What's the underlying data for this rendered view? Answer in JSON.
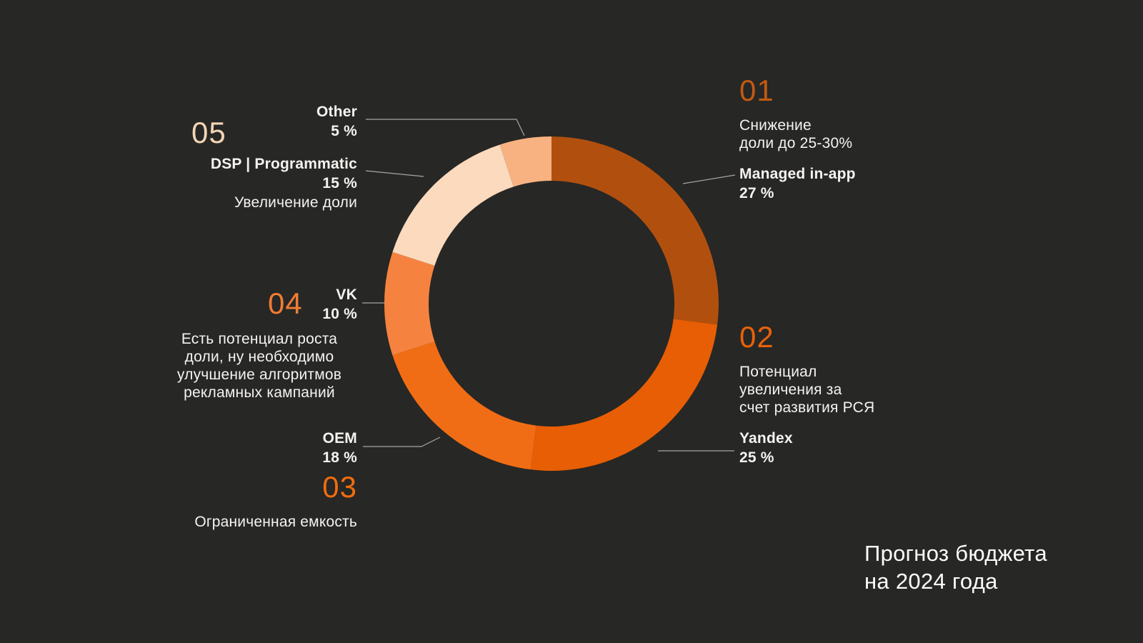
{
  "canvas": {
    "background": "#272725",
    "text_color": "#f5f3f0",
    "leader_line_color": "#a8a6a2"
  },
  "title": {
    "lines": [
      "Прогноз бюджета",
      "на 2024 года"
    ]
  },
  "chart_data": {
    "type": "pie",
    "donut": true,
    "title": "Прогноз бюджета на 2024 года",
    "start_angle_deg": 0,
    "direction": "clockwise",
    "inner_radius_ratio": 0.735,
    "legend_position": "around-chart-callouts",
    "segments": [
      {
        "label": "Managed in-app",
        "value": 27,
        "color": "#b1500e"
      },
      {
        "label": "Yandex",
        "value": 25,
        "color": "#e85e04"
      },
      {
        "label": "OEM",
        "value": 18,
        "color": "#f16d15"
      },
      {
        "label": "VK",
        "value": 10,
        "color": "#f5833f"
      },
      {
        "label": "DSP | Programmatic",
        "value": 15,
        "color": "#fbdabe"
      },
      {
        "label": "Other",
        "value": 5,
        "color": "#f8b282"
      }
    ]
  },
  "annotations": {
    "a01": {
      "number": "01",
      "number_color": "#c25a12",
      "note_lines": [
        "Снижение",
        "доли до 25-30%"
      ],
      "label": "Managed in-app",
      "pct": "27 %"
    },
    "a02": {
      "number": "02",
      "number_color": "#e8620a",
      "note_lines": [
        "Потенциал",
        "увеличения за",
        "счет развития РСЯ"
      ],
      "label": "Yandex",
      "pct": "25 %"
    },
    "a03": {
      "number": "03",
      "number_color": "#ef6c10",
      "note_lines": [
        "Ограниченная емкость"
      ],
      "label": "OEM",
      "pct": "18 %"
    },
    "a04": {
      "number": "04",
      "number_color": "#f07c33",
      "note_lines": [
        "Есть потенциал роста",
        "доли, ну необходимо",
        "улучшение алгоритмов",
        "рекламных кампаний"
      ],
      "label": "VK",
      "pct": "10 %"
    },
    "a05": {
      "number": "05",
      "number_color": "#f3d5b6",
      "note_lines": [
        "Увеличение доли"
      ],
      "label": "DSP | Programmatic",
      "pct": "15 %"
    },
    "other": {
      "label": "Other",
      "pct": "5 %"
    }
  }
}
